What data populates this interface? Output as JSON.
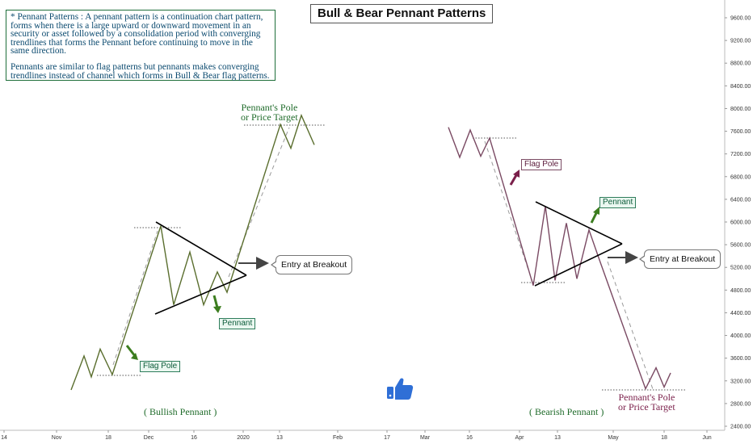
{
  "description": {
    "para1": "* Pennant Patterns : A pennant pattern is a continuation chart pattern, forms when there is a large upward or downward movement in an security or asset followed by a consolidation period with converging trendlines that forms the Pennant before continuing to move in the same direction.",
    "para2": "Pennants are similar to flag patterns but pennants makes converging trendlines instead of channel which forms in Bull & Bear flag patterns."
  },
  "title": "Bull & Bear Pennant Patterns",
  "labels": {
    "bull_flag_pole": "Flag Pole",
    "bull_pennant": "Pennant",
    "bull_entry": "Entry at Breakout",
    "bull_target_line1": "Pennant's Pole",
    "bull_target_line2": "or Price Target",
    "bull_caption": "( Bullish Pennant )",
    "bear_flag_pole": "Flag Pole",
    "bear_pennant": "Pennant",
    "bear_entry": "Entry at Breakout",
    "bear_target_line1": "Pennant's Pole",
    "bear_target_line2": "or Price Target",
    "bear_caption": "( Bearish Pennant )"
  },
  "icons": {
    "thumb": "thumbs-up-icon"
  },
  "colors": {
    "bull_line": "#5a6e2e",
    "bear_line": "#7a4a63",
    "arrow_green": "#3c7d1f",
    "arrow_maroon": "#7a1f4a",
    "trendline": "#000000",
    "axis_text": "#333333",
    "thumb": "#2f6fd6"
  },
  "chart_data": {
    "type": "line",
    "y_axis": {
      "position": "right",
      "ticks": [
        2400,
        2800,
        3200,
        3600,
        4000,
        4400,
        4800,
        5200,
        5600,
        6000,
        6400,
        6800,
        7200,
        7600,
        8000,
        8400,
        8800,
        9200,
        9600
      ],
      "tick_labels": [
        "2400.00",
        "2800.00",
        "3200.00",
        "3600.00",
        "4000.00",
        "4400.00",
        "4800.00",
        "5200.00",
        "5600.00",
        "6000.00",
        "6400.00",
        "6800.00",
        "7200.00",
        "7600.00",
        "8000.00",
        "8400.00",
        "8800.00",
        "9200.00",
        "9600.00"
      ],
      "range": [
        2200,
        9850
      ]
    },
    "x_axis": {
      "tick_labels": [
        "14",
        "Nov",
        "18",
        "Dec",
        "16",
        "2020",
        "13",
        "Feb",
        "17",
        "Mar",
        "16",
        "Apr",
        "13",
        "May",
        "18",
        "Jun"
      ]
    },
    "series": [
      {
        "points": [
          [
            0,
            3040
          ],
          [
            16,
            3640
          ],
          [
            25,
            3270
          ],
          [
            36,
            3760
          ],
          [
            51,
            3310
          ],
          [
            111,
            5930
          ],
          [
            127,
            4540
          ],
          [
            147,
            5470
          ],
          [
            164,
            4540
          ],
          [
            181,
            5120
          ],
          [
            193,
            4760
          ],
          [
            259,
            7720
          ],
          [
            272,
            7300
          ],
          [
            285,
            7880
          ],
          [
            301,
            7360
          ]
        ]
      },
      {
        "points": [
          [
            0,
            7670
          ],
          [
            14,
            7140
          ],
          [
            27,
            7620
          ],
          [
            40,
            7160
          ],
          [
            51,
            7480
          ],
          [
            105,
            4880
          ],
          [
            120,
            6280
          ],
          [
            132,
            4970
          ],
          [
            146,
            5980
          ],
          [
            159,
            5000
          ],
          [
            174,
            5860
          ],
          [
            187,
            5330
          ],
          [
            244,
            3060
          ],
          [
            257,
            3430
          ],
          [
            267,
            3090
          ],
          [
            275,
            3340
          ]
        ]
      }
    ]
  }
}
